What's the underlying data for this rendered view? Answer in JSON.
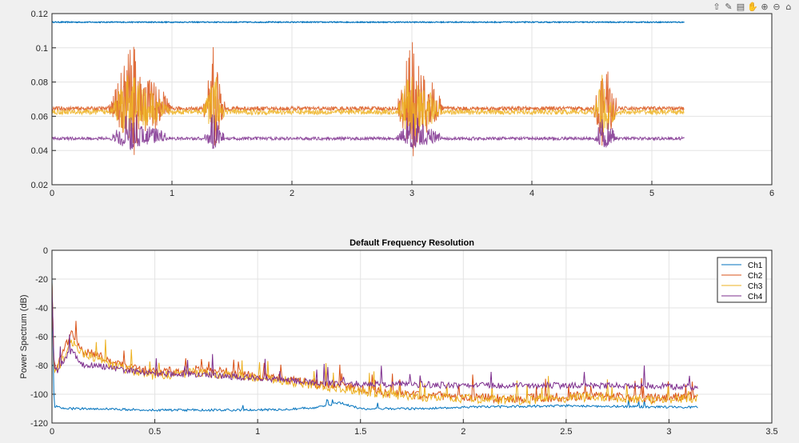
{
  "toolbar": {
    "icons": [
      "export-icon",
      "brush-icon",
      "datatip-icon",
      "pan-icon",
      "zoom-in-icon",
      "zoom-out-icon",
      "home-icon"
    ],
    "glyphs": [
      "⇧",
      "✎",
      "▤",
      "✋",
      "⊕",
      "⊖",
      "⌂"
    ]
  },
  "chart_data": [
    {
      "type": "line",
      "title": "",
      "xlabel": "",
      "ylabel": "",
      "xlim": [
        0,
        6
      ],
      "ylim": [
        0.02,
        0.12
      ],
      "xticks": [
        0,
        1,
        2,
        3,
        4,
        5,
        6
      ],
      "yticks": [
        0.02,
        0.04,
        0.06,
        0.08,
        0.1,
        0.12
      ],
      "xtick_labels": [
        "0",
        "1",
        "2",
        "3",
        "4",
        "5",
        "6"
      ],
      "ytick_labels": [
        "0.02",
        "0.04",
        "0.06",
        "0.08",
        "0.1",
        "0.12"
      ],
      "grid": true,
      "x_end": 5.27,
      "bursts": [
        {
          "start": 0.47,
          "end": 1.0,
          "peak": 0.66
        },
        {
          "start": 1.25,
          "end": 1.45,
          "peak": 1.35
        },
        {
          "start": 2.88,
          "end": 3.27,
          "peak": 3.0
        },
        {
          "start": 4.5,
          "end": 4.72,
          "peak": 4.6
        }
      ],
      "series": [
        {
          "color": "#0072BD",
          "baseline": 0.115,
          "noise": 0.0003,
          "burst_hi": 0.115,
          "burst_lo": 0.115
        },
        {
          "color": "#D95319",
          "baseline": 0.0645,
          "noise": 0.0012,
          "burst_hi": 0.104,
          "burst_lo": 0.036
        },
        {
          "color": "#EDB120",
          "baseline": 0.0625,
          "noise": 0.0015,
          "burst_hi": 0.088,
          "burst_lo": 0.046
        },
        {
          "color": "#7E2F8E",
          "baseline": 0.047,
          "noise": 0.0009,
          "burst_hi": 0.063,
          "burst_lo": 0.04
        }
      ]
    },
    {
      "type": "line",
      "title": "Default Frequency Resolution",
      "xlabel": "",
      "ylabel": "Power Spectrum (dB)",
      "xlim": [
        0,
        3.5
      ],
      "ylim": [
        -120,
        0
      ],
      "xticks": [
        0,
        0.5,
        1,
        1.5,
        2,
        2.5,
        3,
        3.5
      ],
      "yticks": [
        -120,
        -100,
        -80,
        -60,
        -40,
        -20,
        0
      ],
      "xtick_labels": [
        "0",
        "0.5",
        "1",
        "1.5",
        "2",
        "2.5",
        "3",
        "3.5"
      ],
      "ytick_labels": [
        "-120",
        "-100",
        "-80",
        "-60",
        "-40",
        "-20",
        "0"
      ],
      "grid": true,
      "legend_position": "top-right",
      "x_end": 3.14,
      "series": [
        {
          "name": "Ch1",
          "color": "#0072BD",
          "points": [
            [
              0,
              -18
            ],
            [
              0.01,
              -108
            ],
            [
              0.05,
              -110
            ],
            [
              0.2,
              -110
            ],
            [
              0.5,
              -111
            ],
            [
              1.0,
              -111
            ],
            [
              1.2,
              -110
            ],
            [
              1.3,
              -109
            ],
            [
              1.4,
              -106
            ],
            [
              1.45,
              -108
            ],
            [
              1.5,
              -110
            ],
            [
              1.8,
              -110
            ],
            [
              2.0,
              -109
            ],
            [
              2.5,
              -108
            ],
            [
              3.0,
              -109
            ],
            [
              3.14,
              -109
            ]
          ]
        },
        {
          "name": "Ch2",
          "color": "#D95319",
          "points": [
            [
              0,
              -22
            ],
            [
              0.01,
              -82
            ],
            [
              0.03,
              -80
            ],
            [
              0.06,
              -70
            ],
            [
              0.09,
              -57
            ],
            [
              0.12,
              -64
            ],
            [
              0.15,
              -70
            ],
            [
              0.2,
              -72
            ],
            [
              0.3,
              -78
            ],
            [
              0.4,
              -82
            ],
            [
              0.5,
              -85
            ],
            [
              0.7,
              -83
            ],
            [
              0.9,
              -85
            ],
            [
              1.1,
              -89
            ],
            [
              1.3,
              -93
            ],
            [
              1.5,
              -96
            ],
            [
              1.7,
              -100
            ],
            [
              2.0,
              -102
            ],
            [
              2.3,
              -103
            ],
            [
              2.6,
              -101
            ],
            [
              2.9,
              -103
            ],
            [
              3.14,
              -101
            ]
          ]
        },
        {
          "name": "Ch3",
          "color": "#EDB120",
          "points": [
            [
              0,
              -22
            ],
            [
              0.01,
              -85
            ],
            [
              0.03,
              -82
            ],
            [
              0.06,
              -74
            ],
            [
              0.09,
              -62
            ],
            [
              0.12,
              -68
            ],
            [
              0.15,
              -72
            ],
            [
              0.2,
              -74
            ],
            [
              0.3,
              -80
            ],
            [
              0.4,
              -84
            ],
            [
              0.5,
              -87
            ],
            [
              0.7,
              -85
            ],
            [
              0.9,
              -87
            ],
            [
              1.1,
              -90
            ],
            [
              1.3,
              -94
            ],
            [
              1.5,
              -98
            ],
            [
              1.7,
              -101
            ],
            [
              2.0,
              -103
            ],
            [
              2.3,
              -104
            ],
            [
              2.6,
              -102
            ],
            [
              2.9,
              -104
            ],
            [
              3.14,
              -103
            ]
          ]
        },
        {
          "name": "Ch4",
          "color": "#7E2F8E",
          "points": [
            [
              0,
              -24
            ],
            [
              0.01,
              -80
            ],
            [
              0.03,
              -84
            ],
            [
              0.06,
              -76
            ],
            [
              0.09,
              -70
            ],
            [
              0.12,
              -74
            ],
            [
              0.15,
              -80
            ],
            [
              0.2,
              -80
            ],
            [
              0.3,
              -82
            ],
            [
              0.4,
              -84
            ],
            [
              0.5,
              -86
            ],
            [
              0.7,
              -86
            ],
            [
              0.9,
              -88
            ],
            [
              1.1,
              -90
            ],
            [
              1.3,
              -92
            ],
            [
              1.5,
              -93
            ],
            [
              1.7,
              -93
            ],
            [
              2.0,
              -94
            ],
            [
              2.3,
              -94
            ],
            [
              2.6,
              -94
            ],
            [
              2.9,
              -94
            ],
            [
              3.14,
              -95
            ]
          ]
        }
      ]
    }
  ]
}
